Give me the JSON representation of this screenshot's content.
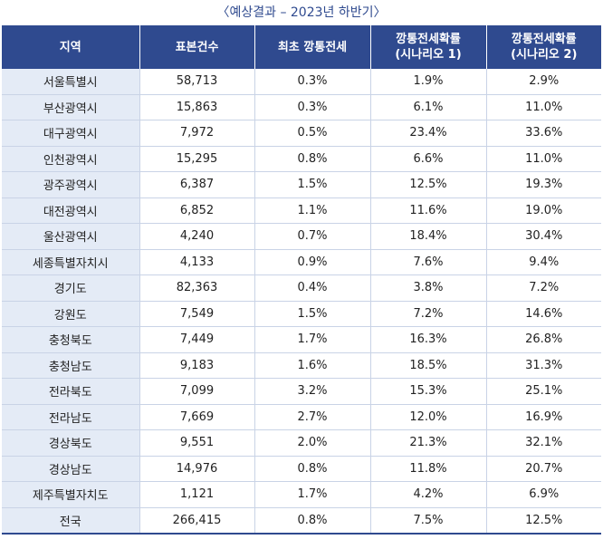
{
  "title": "〈예상결과 – 2023년 하반기〉",
  "headers": [
    "지역",
    "표본건수",
    "최초 깡통전세",
    "깡통전세확률\n(시나리오 1)",
    "깡통전세확률\n(시나리오 2)"
  ],
  "rows": [
    [
      "서울특별시",
      "58,713",
      "0.3%",
      "1.9%",
      "2.9%"
    ],
    [
      "부산광역시",
      "15,863",
      "0.3%",
      "6.1%",
      "11.0%"
    ],
    [
      "대구광역시",
      "7,972",
      "0.5%",
      "23.4%",
      "33.6%"
    ],
    [
      "인천광역시",
      "15,295",
      "0.8%",
      "6.6%",
      "11.0%"
    ],
    [
      "광주광역시",
      "6,387",
      "1.5%",
      "12.5%",
      "19.3%"
    ],
    [
      "대전광역시",
      "6,852",
      "1.1%",
      "11.6%",
      "19.0%"
    ],
    [
      "울산광역시",
      "4,240",
      "0.7%",
      "18.4%",
      "30.4%"
    ],
    [
      "세종특별자치시",
      "4,133",
      "0.9%",
      "7.6%",
      "9.4%"
    ],
    [
      "경기도",
      "82,363",
      "0.4%",
      "3.8%",
      "7.2%"
    ],
    [
      "강원도",
      "7,549",
      "1.5%",
      "7.2%",
      "14.6%"
    ],
    [
      "충청북도",
      "7,449",
      "1.7%",
      "16.3%",
      "26.8%"
    ],
    [
      "충청남도",
      "9,183",
      "1.6%",
      "18.5%",
      "31.3%"
    ],
    [
      "전라북도",
      "7,099",
      "3.2%",
      "15.3%",
      "25.1%"
    ],
    [
      "전라남도",
      "7,669",
      "2.7%",
      "12.0%",
      "16.9%"
    ],
    [
      "경상북도",
      "9,551",
      "2.0%",
      "21.3%",
      "32.1%"
    ],
    [
      "경상남도",
      "14,976",
      "0.8%",
      "11.8%",
      "20.7%"
    ],
    [
      "제주특별자치도",
      "1,121",
      "1.7%",
      "4.2%",
      "6.9%"
    ],
    [
      "전국",
      "266,415",
      "0.8%",
      "7.5%",
      "12.5%"
    ]
  ]
}
